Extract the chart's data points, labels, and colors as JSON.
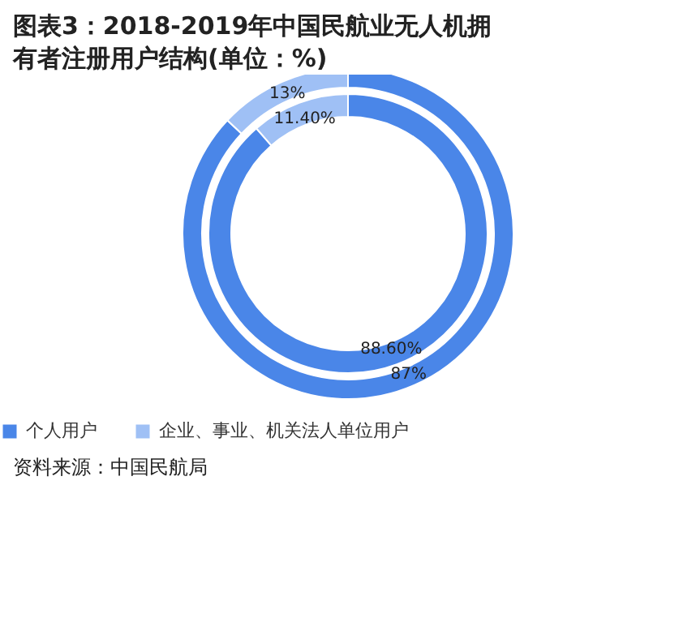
{
  "chart_data": {
    "type": "donut",
    "title": "图表3：2018-2019年中国民航业无人机拥有者注册用户结构(单位：%)",
    "categories": [
      "个人用户",
      "企业、事业、机关法人单位用户"
    ],
    "series": [
      {
        "values": [
          88.6,
          11.4
        ],
        "colors": [
          "#4a86e8",
          "#9fc0f5"
        ],
        "value_labels": [
          "88.60%",
          "11.40%"
        ]
      },
      {
        "values": [
          87,
          13
        ],
        "colors": [
          "#4a86e8",
          "#9fc0f5"
        ],
        "value_labels": [
          "87%",
          "13%"
        ]
      }
    ],
    "legend": "bottom",
    "annotations": [
      "资料来源：中国民航局"
    ]
  }
}
